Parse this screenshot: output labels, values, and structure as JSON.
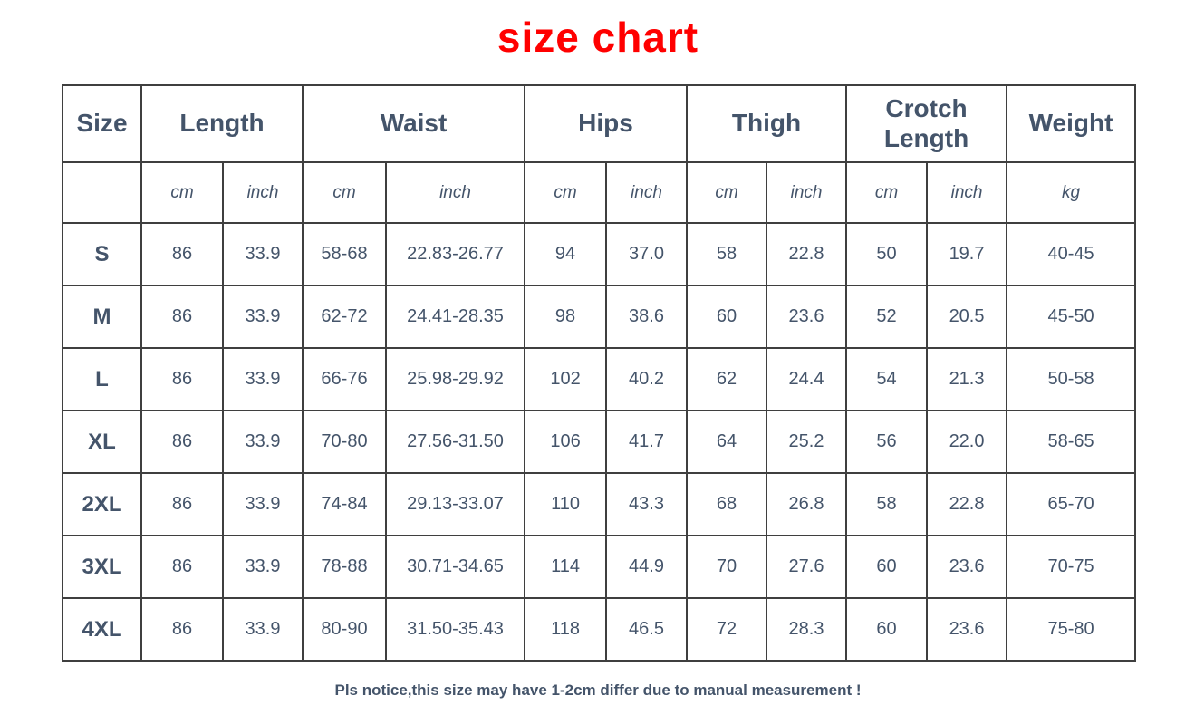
{
  "page": {
    "title": "size chart",
    "note": "Pls notice,this size may have 1-2cm differ due to manual measurement !"
  },
  "colors": {
    "title_red": "#ff0000",
    "text_slate": "#44546a",
    "border_gray": "#3f3f3f"
  },
  "table": {
    "header_groups": [
      {
        "label": "Size",
        "span": 1
      },
      {
        "label": "Length",
        "span": 2
      },
      {
        "label": "Waist",
        "span": 2
      },
      {
        "label": "Hips",
        "span": 2
      },
      {
        "label": "Thigh",
        "span": 2
      },
      {
        "label": "Crotch Length",
        "span": 2
      },
      {
        "label": "Weight",
        "span": 1
      }
    ],
    "unit_row": [
      "",
      "cm",
      "inch",
      "cm",
      "inch",
      "cm",
      "inch",
      "cm",
      "inch",
      "cm",
      "inch",
      "kg"
    ],
    "rows": [
      {
        "size": "S",
        "values": [
          "86",
          "33.9",
          "58-68",
          "22.83-26.77",
          "94",
          "37.0",
          "58",
          "22.8",
          "50",
          "19.7",
          "40-45"
        ]
      },
      {
        "size": "M",
        "values": [
          "86",
          "33.9",
          "62-72",
          "24.41-28.35",
          "98",
          "38.6",
          "60",
          "23.6",
          "52",
          "20.5",
          "45-50"
        ]
      },
      {
        "size": "L",
        "values": [
          "86",
          "33.9",
          "66-76",
          "25.98-29.92",
          "102",
          "40.2",
          "62",
          "24.4",
          "54",
          "21.3",
          "50-58"
        ]
      },
      {
        "size": "XL",
        "values": [
          "86",
          "33.9",
          "70-80",
          "27.56-31.50",
          "106",
          "41.7",
          "64",
          "25.2",
          "56",
          "22.0",
          "58-65"
        ]
      },
      {
        "size": "2XL",
        "values": [
          "86",
          "33.9",
          "74-84",
          "29.13-33.07",
          "110",
          "43.3",
          "68",
          "26.8",
          "58",
          "22.8",
          "65-70"
        ]
      },
      {
        "size": "3XL",
        "values": [
          "86",
          "33.9",
          "78-88",
          "30.71-34.65",
          "114",
          "44.9",
          "70",
          "27.6",
          "60",
          "23.6",
          "70-75"
        ]
      },
      {
        "size": "4XL",
        "values": [
          "86",
          "33.9",
          "80-90",
          "31.50-35.43",
          "118",
          "46.5",
          "72",
          "28.3",
          "60",
          "23.6",
          "75-80"
        ]
      }
    ]
  }
}
